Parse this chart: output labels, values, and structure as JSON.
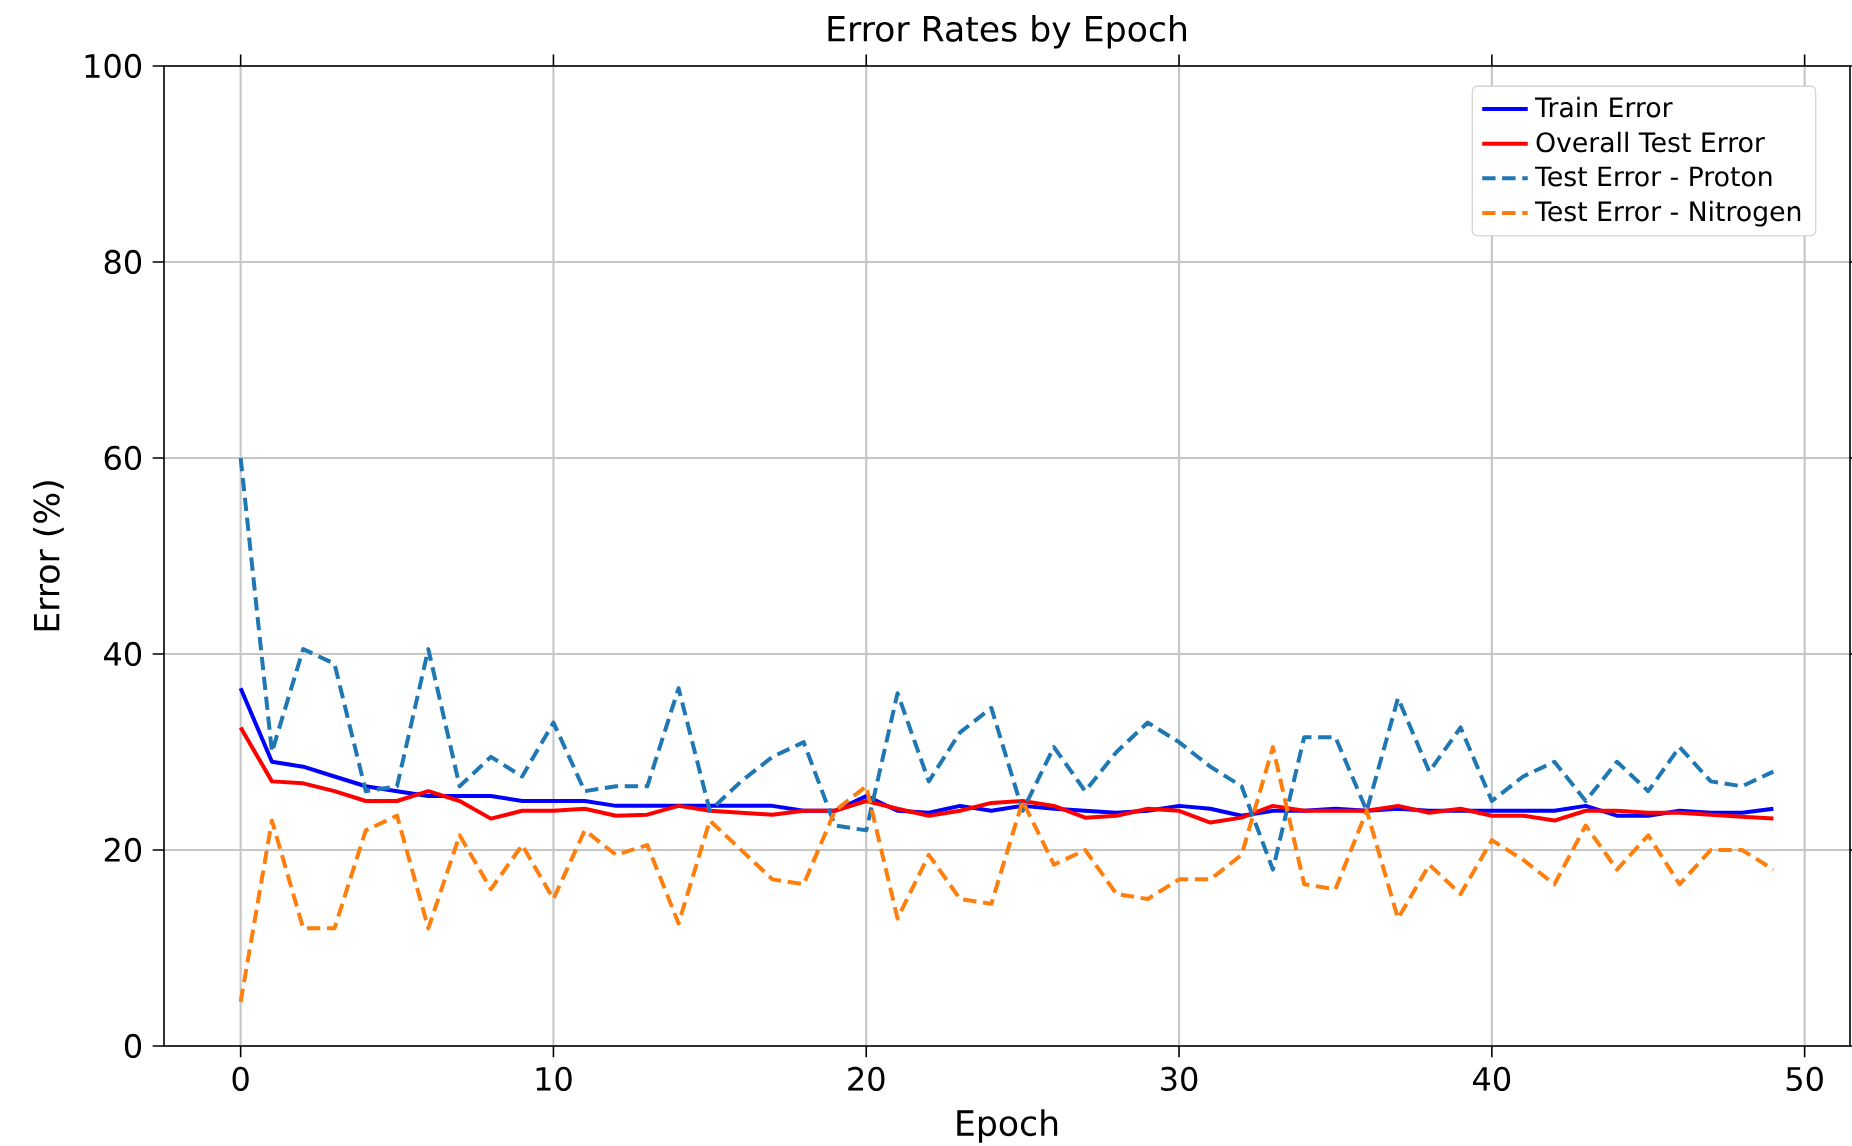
{
  "chart_data": {
    "type": "line",
    "title": "Error Rates by Epoch",
    "xlabel": "Epoch",
    "ylabel": "Error (%)",
    "x": [
      0,
      1,
      2,
      3,
      4,
      5,
      6,
      7,
      8,
      9,
      10,
      11,
      12,
      13,
      14,
      15,
      16,
      17,
      18,
      19,
      20,
      21,
      22,
      23,
      24,
      25,
      26,
      27,
      28,
      29,
      30,
      31,
      32,
      33,
      34,
      35,
      36,
      37,
      38,
      39,
      40,
      41,
      42,
      43,
      44,
      45,
      46,
      47,
      48,
      49
    ],
    "xlim": [
      -2.45,
      51.45
    ],
    "xticks": [
      0,
      10,
      20,
      30,
      40,
      50
    ],
    "ylim": [
      0,
      100
    ],
    "yticks": [
      0,
      20,
      40,
      60,
      80,
      100
    ],
    "grid": true,
    "legend": "top right",
    "series": [
      {
        "name": "Train Error",
        "color": "#0000ff",
        "line_style": "solid",
        "values": [
          36.5,
          29,
          28.5,
          27.5,
          26.5,
          26,
          25.5,
          25.5,
          25.5,
          25,
          25,
          25,
          24.5,
          24.5,
          24.5,
          24.5,
          24.5,
          24.5,
          24,
          24,
          25.5,
          24,
          23.8,
          24.5,
          24,
          24.5,
          24.2,
          24,
          23.8,
          24,
          24.5,
          24.2,
          23.5,
          24,
          24,
          24.2,
          24,
          24.2,
          24,
          24,
          24,
          24,
          24,
          24.5,
          23.5,
          23.5,
          24,
          23.8,
          23.8,
          24.2
        ]
      },
      {
        "name": "Overall Test Error",
        "color": "#ff0000",
        "line_style": "solid",
        "values": [
          32.5,
          27,
          26.8,
          26,
          25,
          25,
          26,
          25,
          23.2,
          24,
          24,
          24.2,
          23.5,
          23.6,
          24.5,
          24,
          23.8,
          23.6,
          24,
          24,
          25,
          24.2,
          23.5,
          24,
          24.8,
          25,
          24.5,
          23.3,
          23.5,
          24.2,
          24,
          22.8,
          23.3,
          24.5,
          24,
          24,
          24,
          24.5,
          23.8,
          24.2,
          23.5,
          23.5,
          23,
          24,
          24,
          23.8,
          23.8,
          23.6,
          23.4,
          23.2
        ]
      },
      {
        "name": "Test Error - Proton",
        "color": "#1f77b4",
        "line_style": "dashed",
        "values": [
          60,
          30,
          40.5,
          39,
          26,
          26.5,
          40.5,
          26.5,
          29.5,
          27.5,
          33,
          26,
          26.5,
          26.5,
          36.5,
          24,
          27,
          29.5,
          31,
          22.5,
          22,
          36,
          27,
          32,
          34.5,
          24,
          30.5,
          26,
          30,
          33,
          31,
          28.5,
          26.5,
          18,
          31.5,
          31.5,
          24,
          35.5,
          28,
          32.5,
          25,
          27.5,
          29,
          25,
          29,
          26,
          30.5,
          27,
          26.5,
          28
        ]
      },
      {
        "name": "Test Error - Nitrogen",
        "color": "#ff7f0e",
        "line_style": "dashed",
        "values": [
          4.5,
          23,
          12,
          12,
          22,
          23.5,
          12,
          21.5,
          16,
          20.5,
          15,
          22,
          19.5,
          20.5,
          12.5,
          23,
          20,
          17,
          16.5,
          24,
          26.5,
          13,
          19.5,
          15,
          14.5,
          25,
          18.5,
          20,
          15.5,
          15,
          17,
          17,
          19.5,
          30.5,
          16.5,
          16,
          24,
          13,
          18.5,
          15.5,
          21,
          19,
          16.5,
          22.5,
          18,
          21.5,
          16.5,
          20,
          20,
          18
        ]
      }
    ]
  }
}
